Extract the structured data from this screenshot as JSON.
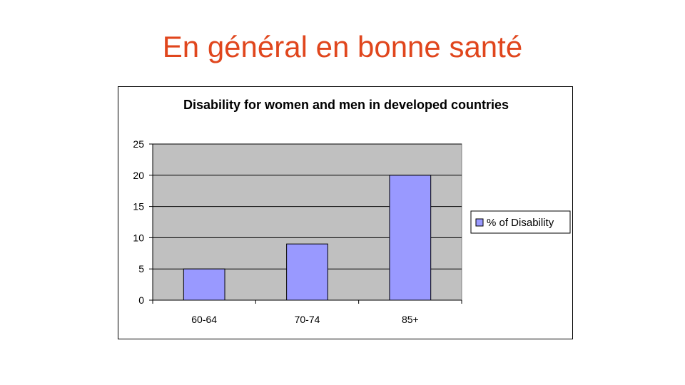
{
  "slide": {
    "title": "En général en bonne santé"
  },
  "chart_data": {
    "type": "bar",
    "title": "Disability for women and men in developed countries",
    "categories": [
      "60-64",
      "70-74",
      "85+"
    ],
    "series": [
      {
        "name": "% of Disability",
        "values": [
          5,
          9,
          20
        ],
        "color": "#9999ff"
      }
    ],
    "ylim": [
      0,
      25
    ],
    "yticks": [
      0,
      5,
      10,
      15,
      20,
      25
    ],
    "grid": true,
    "plot_background": "#c0c0c0",
    "legend_position": "right",
    "xlabel": "",
    "ylabel": ""
  }
}
